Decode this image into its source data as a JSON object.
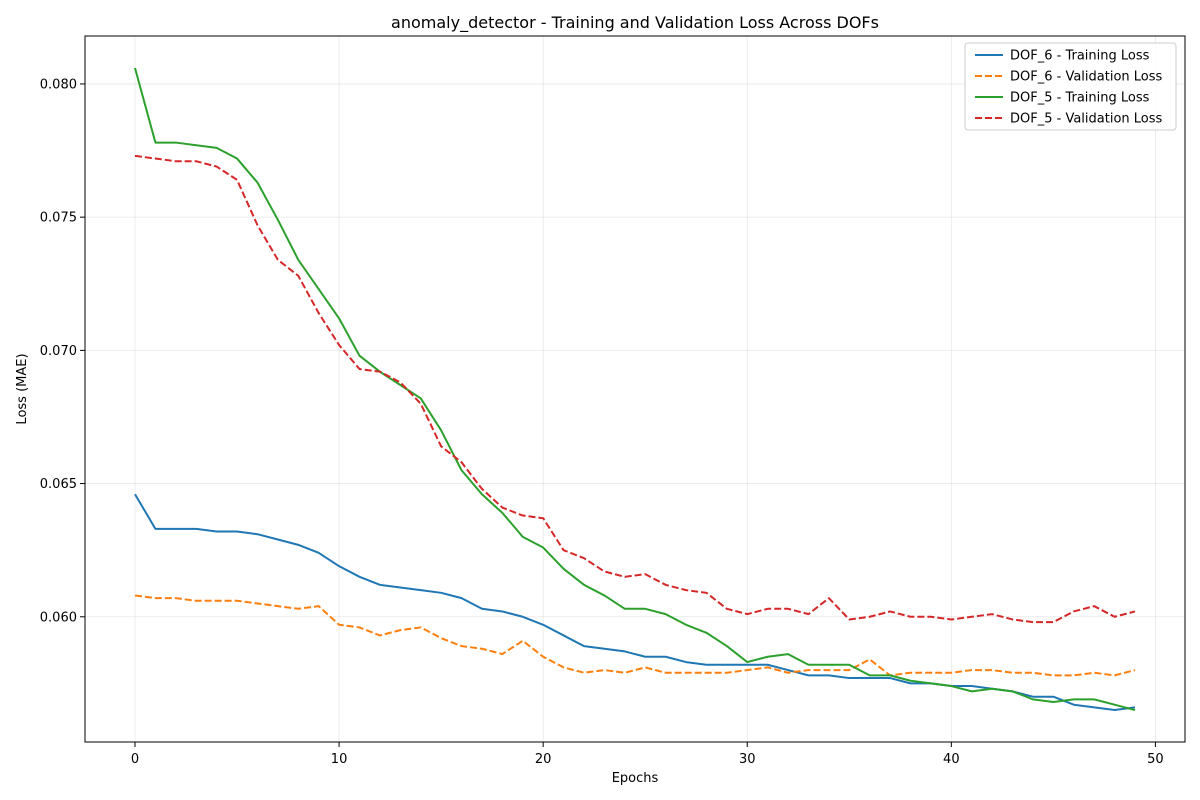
{
  "chart_data": {
    "type": "line",
    "title": "anomaly_detector - Training and Validation Loss Across DOFs",
    "xlabel": "Epochs",
    "ylabel": "Loss (MAE)",
    "xlim": [
      -2.45,
      51.45
    ],
    "ylim": [
      0.0553,
      0.0818
    ],
    "xticks": [
      0,
      10,
      20,
      30,
      40,
      50
    ],
    "yticks": [
      0.06,
      0.065,
      0.07,
      0.075,
      0.08
    ],
    "ytick_labels": [
      "0.060",
      "0.065",
      "0.070",
      "0.075",
      "0.080"
    ],
    "grid": true,
    "legend_position": "top-right",
    "series": [
      {
        "name": "DOF_6 - Training Loss",
        "color": "#1f77b4",
        "dash": "solid",
        "values": [
          0.0646,
          0.0633,
          0.0633,
          0.0633,
          0.0632,
          0.0632,
          0.0631,
          0.0629,
          0.0627,
          0.0624,
          0.0619,
          0.0615,
          0.0612,
          0.0611,
          0.061,
          0.0609,
          0.0607,
          0.0603,
          0.0602,
          0.06,
          0.0597,
          0.0593,
          0.0589,
          0.0588,
          0.0587,
          0.0585,
          0.0585,
          0.0583,
          0.0582,
          0.0582,
          0.0582,
          0.0582,
          0.058,
          0.0578,
          0.0578,
          0.0577,
          0.0577,
          0.0577,
          0.0575,
          0.0575,
          0.0574,
          0.0574,
          0.0573,
          0.0572,
          0.057,
          0.057,
          0.0567,
          0.0566,
          0.0565,
          0.0566
        ]
      },
      {
        "name": "DOF_6 - Validation Loss",
        "color": "#ff7f0e",
        "dash": "dashed",
        "values": [
          0.0608,
          0.0607,
          0.0607,
          0.0606,
          0.0606,
          0.0606,
          0.0605,
          0.0604,
          0.0603,
          0.0604,
          0.0597,
          0.0596,
          0.0593,
          0.0595,
          0.0596,
          0.0592,
          0.0589,
          0.0588,
          0.0586,
          0.0591,
          0.0585,
          0.0581,
          0.0579,
          0.058,
          0.0579,
          0.0581,
          0.0579,
          0.0579,
          0.0579,
          0.0579,
          0.058,
          0.0581,
          0.0579,
          0.058,
          0.058,
          0.058,
          0.0584,
          0.0578,
          0.0579,
          0.0579,
          0.0579,
          0.058,
          0.058,
          0.0579,
          0.0579,
          0.0578,
          0.0578,
          0.0579,
          0.0578,
          0.058
        ]
      },
      {
        "name": "DOF_5 - Training Loss",
        "color": "#2ca02c",
        "dash": "solid",
        "values": [
          0.0806,
          0.0778,
          0.0778,
          0.0777,
          0.0776,
          0.0772,
          0.0763,
          0.0749,
          0.0734,
          0.0723,
          0.0712,
          0.0698,
          0.0692,
          0.0687,
          0.0682,
          0.067,
          0.0655,
          0.0646,
          0.0639,
          0.063,
          0.0626,
          0.0618,
          0.0612,
          0.0608,
          0.0603,
          0.0603,
          0.0601,
          0.0597,
          0.0594,
          0.0589,
          0.0583,
          0.0585,
          0.0586,
          0.0582,
          0.0582,
          0.0582,
          0.0578,
          0.0578,
          0.0576,
          0.0575,
          0.0574,
          0.0572,
          0.0573,
          0.0572,
          0.0569,
          0.0568,
          0.0569,
          0.0569,
          0.0567,
          0.0565
        ]
      },
      {
        "name": "DOF_5 - Validation Loss",
        "color": "#d62728",
        "dash": "dashed",
        "values": [
          0.0773,
          0.0772,
          0.0771,
          0.0771,
          0.0769,
          0.0764,
          0.0747,
          0.0734,
          0.0728,
          0.0714,
          0.0702,
          0.0693,
          0.0692,
          0.0688,
          0.068,
          0.0664,
          0.0658,
          0.0648,
          0.0641,
          0.0638,
          0.0637,
          0.0625,
          0.0622,
          0.0617,
          0.0615,
          0.0616,
          0.0612,
          0.061,
          0.0609,
          0.0603,
          0.0601,
          0.0603,
          0.0603,
          0.0601,
          0.0607,
          0.0599,
          0.06,
          0.0602,
          0.06,
          0.06,
          0.0599,
          0.06,
          0.0601,
          0.0599,
          0.0598,
          0.0598,
          0.0602,
          0.0604,
          0.06,
          0.0602
        ]
      }
    ]
  }
}
